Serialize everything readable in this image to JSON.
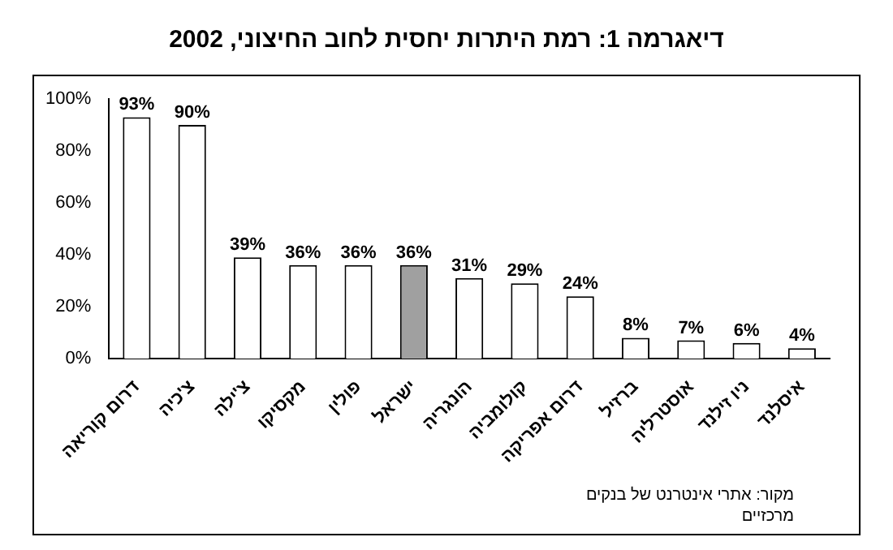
{
  "chart_data": {
    "type": "bar",
    "title": "דיאגרמה 1: רמת היתרות יחסית לחוב החיצוני, 2002",
    "categories": [
      "דרום קוריאה",
      "צ'כיה",
      "צ'ילה",
      "מקסיקו",
      "פולין",
      "ישראל",
      "הונגריה",
      "קולומביה",
      "דרום אפריקה",
      "ברזיל",
      "אוסטרליה",
      "ניו זילנד",
      "איסלנד"
    ],
    "values": [
      93,
      90,
      39,
      36,
      36,
      36,
      31,
      29,
      24,
      8,
      7,
      6,
      4
    ],
    "value_labels": [
      "93%",
      "90%",
      "39%",
      "36%",
      "36%",
      "36%",
      "31%",
      "29%",
      "24%",
      "8%",
      "7%",
      "6%",
      "4%"
    ],
    "colors": [
      "#ffffff",
      "#ffffff",
      "#ffffff",
      "#ffffff",
      "#ffffff",
      "#a0a0a0",
      "#ffffff",
      "#ffffff",
      "#ffffff",
      "#ffffff",
      "#ffffff",
      "#ffffff",
      "#ffffff"
    ],
    "ylim": [
      0,
      100
    ],
    "yticks": [
      {
        "value": 0,
        "label": "0%"
      },
      {
        "value": 20,
        "label": "20%"
      },
      {
        "value": 40,
        "label": "40%"
      },
      {
        "value": 60,
        "label": "60%"
      },
      {
        "value": 80,
        "label": "80%"
      },
      {
        "value": 100,
        "label": "100%"
      }
    ],
    "grid": false,
    "legend": false,
    "annotations": [
      "מקור: אתרי אינטרנט של בנקים מרכזיים"
    ]
  }
}
